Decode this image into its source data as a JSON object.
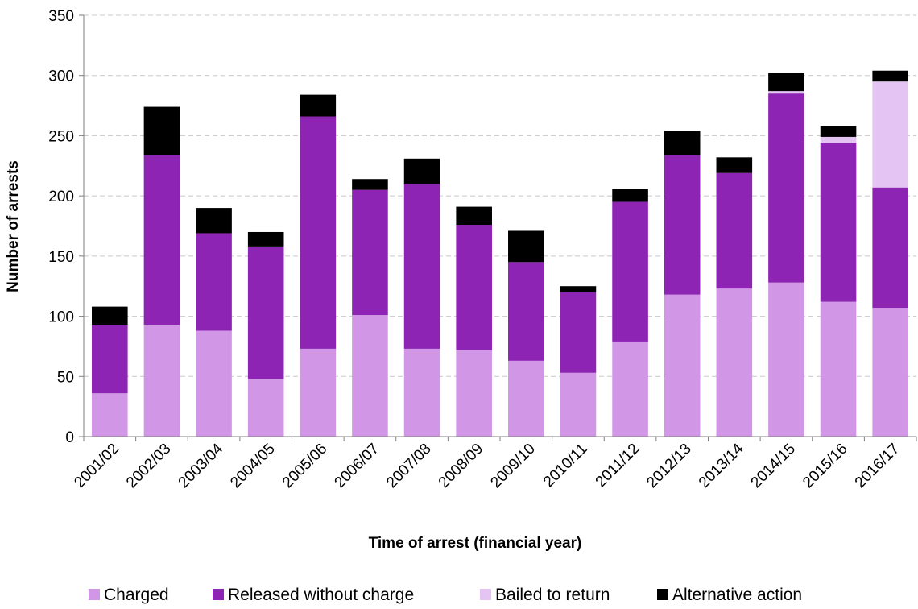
{
  "chart_data": {
    "type": "bar",
    "stacked": true,
    "xlabel": "Time of arrest (financial year)",
    "ylabel": "Number of arrests",
    "ylim": [
      0,
      350
    ],
    "yticks": [
      0,
      50,
      100,
      150,
      200,
      250,
      300,
      350
    ],
    "grid": true,
    "legend_position": "bottom",
    "categories": [
      "2001/02",
      "2002/03",
      "2003/04",
      "2004/05",
      "2005/06",
      "2006/07",
      "2007/08",
      "2008/09",
      "2009/10",
      "2010/11",
      "2011/12",
      "2012/13",
      "2013/14",
      "2014/15",
      "2015/16",
      "2016/17"
    ],
    "series": [
      {
        "name": "Charged",
        "color": "#d196e6",
        "values": [
          36,
          93,
          88,
          48,
          73,
          101,
          73,
          72,
          63,
          53,
          79,
          118,
          123,
          128,
          112,
          107
        ]
      },
      {
        "name": "Released without charge",
        "color": "#8e24b4",
        "values": [
          57,
          141,
          81,
          110,
          193,
          104,
          137,
          104,
          82,
          67,
          116,
          116,
          96,
          157,
          132,
          100
        ]
      },
      {
        "name": "Bailed to return",
        "color": "#e3c4f2",
        "values": [
          0,
          0,
          0,
          0,
          0,
          0,
          0,
          0,
          0,
          0,
          0,
          0,
          0,
          2,
          5,
          88
        ]
      },
      {
        "name": "Alternative action",
        "color": "#000000",
        "values": [
          15,
          40,
          21,
          12,
          18,
          9,
          21,
          15,
          26,
          5,
          11,
          20,
          13,
          15,
          9,
          9
        ]
      }
    ]
  }
}
